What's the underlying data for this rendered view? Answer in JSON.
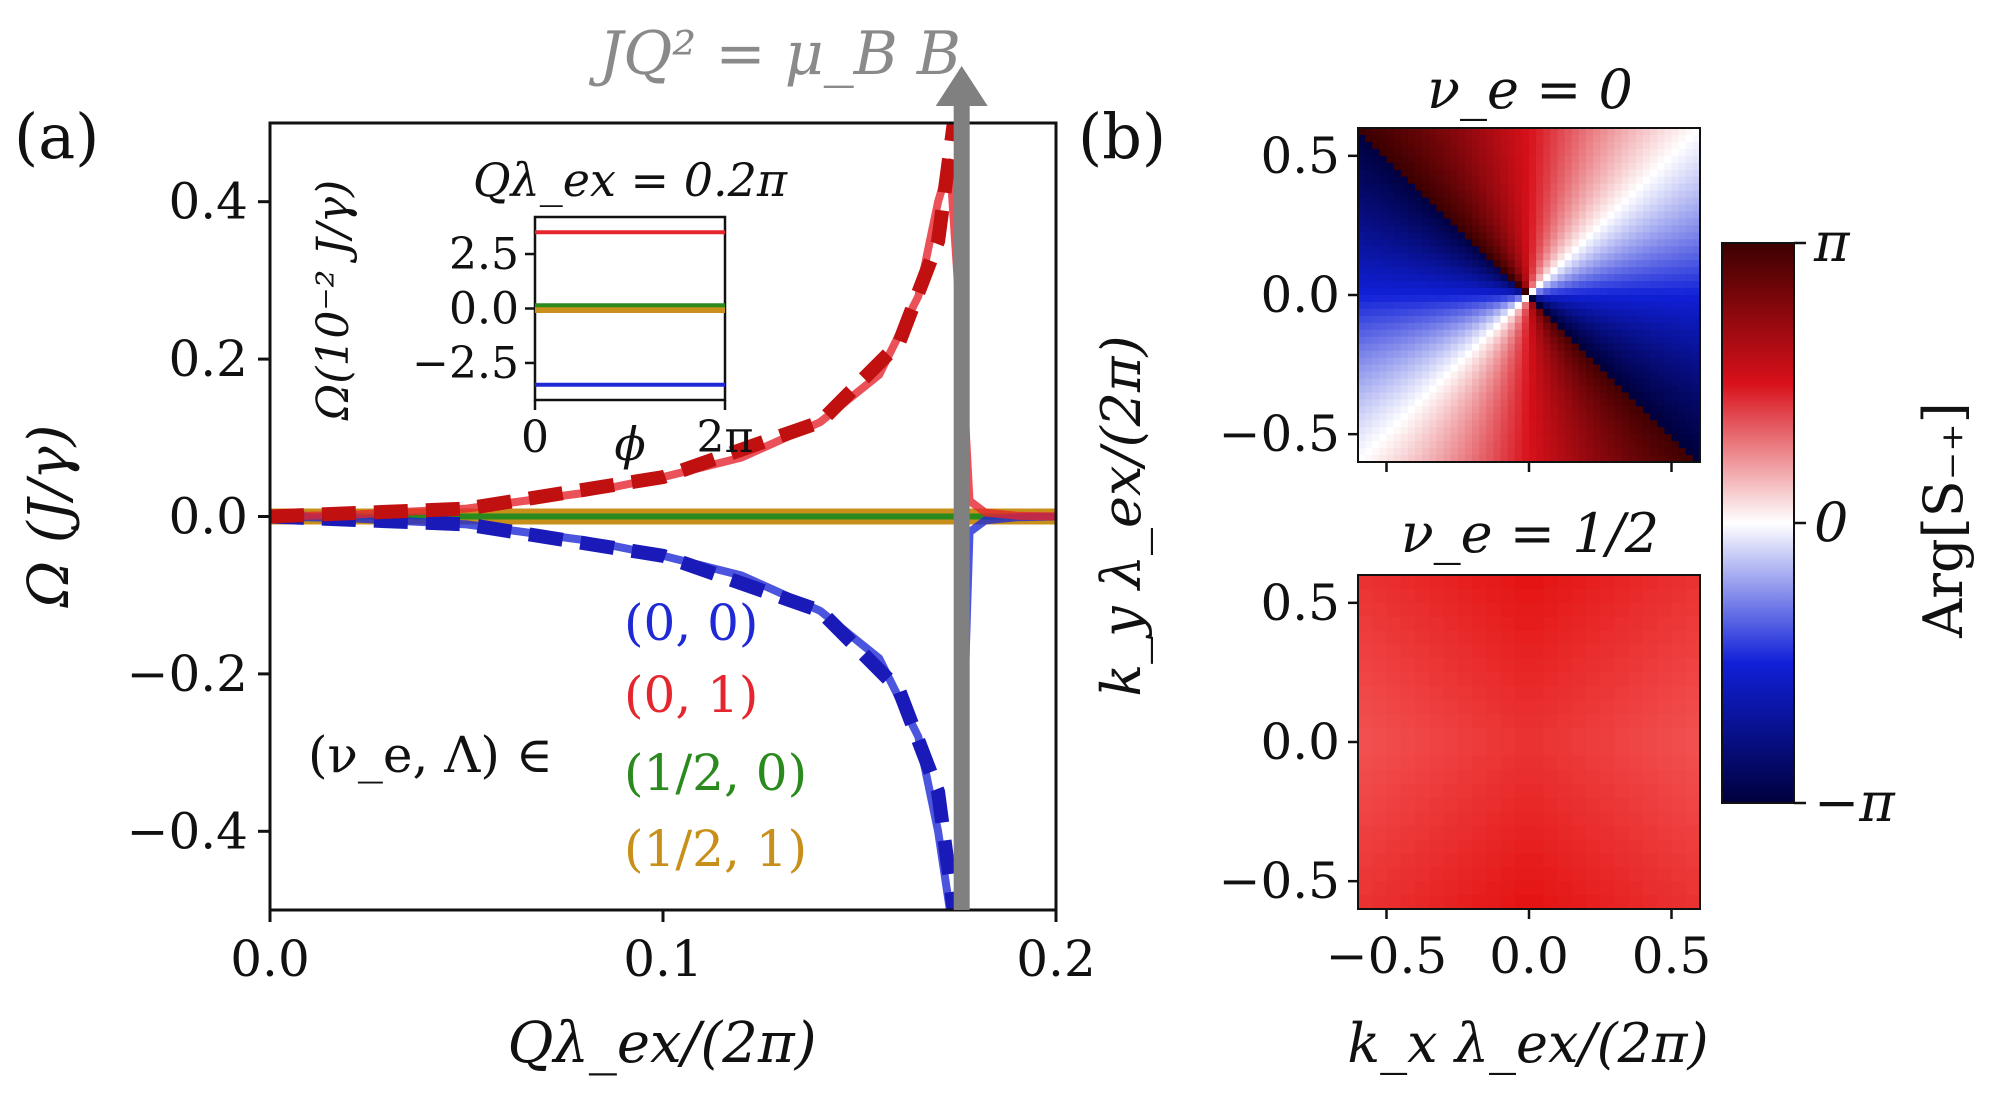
{
  "panel_a": {
    "label": "(a)",
    "annotation": "JQ² = μ_B B",
    "inset_title": "Qλ_ex = 0.2π",
    "legend_prefix": "(ν_e, Λ) ∈"
  },
  "panel_b": {
    "label": "(b)"
  },
  "colors": {
    "blue": "#1f2ad6",
    "red": "#e6262e",
    "green": "#2a8a1e",
    "gold": "#c8901a",
    "gray": "#808080"
  },
  "chart_data": [
    {
      "type": "line",
      "title": "",
      "xlabel": "Qλ_ex/(2π)",
      "ylabel": "Ω (J/γ)",
      "xlim": [
        0.0,
        0.2
      ],
      "ylim": [
        -0.5,
        0.5
      ],
      "xticks": [
        0.0,
        0.1,
        0.2
      ],
      "xtick_labels": [
        "0.0",
        "0.1",
        "0.2"
      ],
      "yticks": [
        -0.4,
        -0.2,
        0.0,
        0.2,
        0.4
      ],
      "ytick_labels": [
        "−0.4",
        "−0.2",
        "0.0",
        "0.2",
        "0.4"
      ],
      "resonance_x": 0.176,
      "series": [
        {
          "name": "(0, 0)",
          "color": "blue",
          "x": [
            0.0,
            0.02,
            0.05,
            0.08,
            0.1,
            0.12,
            0.14,
            0.155,
            0.165,
            0.17,
            0.173,
            0.175,
            0.178,
            0.182,
            0.19,
            0.2
          ],
          "y": [
            0.0,
            -0.002,
            -0.01,
            -0.03,
            -0.05,
            -0.075,
            -0.12,
            -0.18,
            -0.28,
            -0.4,
            -0.5,
            -0.5,
            -0.02,
            -0.005,
            -0.001,
            0.0
          ]
        },
        {
          "name": "(0, 1)",
          "color": "red",
          "x": [
            0.0,
            0.02,
            0.05,
            0.08,
            0.1,
            0.12,
            0.14,
            0.155,
            0.165,
            0.17,
            0.173,
            0.175,
            0.178,
            0.182,
            0.19,
            0.2
          ],
          "y": [
            0.0,
            0.002,
            0.01,
            0.03,
            0.05,
            0.075,
            0.12,
            0.18,
            0.28,
            0.4,
            0.45,
            0.3,
            0.02,
            0.005,
            0.001,
            0.0
          ]
        },
        {
          "name": "(1/2, 0)",
          "color": "green",
          "x": [
            0.0,
            0.2
          ],
          "y": [
            0.0,
            0.0
          ]
        },
        {
          "name": "(1/2, 1)",
          "color": "gold",
          "x": [
            0.0,
            0.2
          ],
          "y": [
            0.0,
            0.0
          ]
        }
      ],
      "dashed_series": [
        {
          "name": "(0, 0) dashed",
          "color": "blue",
          "x": [
            0.0,
            0.05,
            0.1,
            0.14,
            0.16,
            0.17,
            0.174
          ],
          "y": [
            0.0,
            -0.01,
            -0.05,
            -0.12,
            -0.22,
            -0.35,
            -0.5
          ]
        },
        {
          "name": "(0, 1) dashed",
          "color": "red",
          "x": [
            0.0,
            0.05,
            0.1,
            0.14,
            0.16,
            0.17,
            0.174
          ],
          "y": [
            0.0,
            0.01,
            0.05,
            0.12,
            0.22,
            0.35,
            0.5
          ]
        }
      ]
    },
    {
      "type": "line",
      "title": "Qλ_ex = 0.2π",
      "xlabel": "ϕ",
      "ylabel": "Ω(10⁻² J/γ)",
      "xticks": [
        "0",
        "2π"
      ],
      "ylim": [
        -4.2,
        4.2
      ],
      "yticks": [
        -2.5,
        0.0,
        2.5
      ],
      "ytick_labels": [
        "−2.5",
        "0.0",
        "2.5"
      ],
      "series": [
        {
          "name": "(0, 1)",
          "color": "red",
          "y": 3.5
        },
        {
          "name": "(1/2, 1)",
          "color": "gold",
          "y": 0.0
        },
        {
          "name": "(1/2, 0)",
          "color": "green",
          "y": 0.15
        },
        {
          "name": "(0, 0)",
          "color": "blue",
          "y": -3.5
        }
      ]
    },
    {
      "type": "heatmap",
      "title": "ν_e = 0",
      "ylabel": "k_y λ_ex/(2π)",
      "xlim": [
        -0.6,
        0.6
      ],
      "ylim": [
        -0.6,
        0.6
      ],
      "yticks": [
        "−0.5",
        "0.0",
        "0.5"
      ],
      "description_values": "Arg of S₋₊ winding around origin"
    },
    {
      "type": "heatmap",
      "title": "ν_e = 1/2",
      "xlabel": "k_x λ_ex/(2π)",
      "ylabel": "k_y λ_ex/(2π)",
      "xlim": [
        -0.6,
        0.6
      ],
      "ylim": [
        -0.6,
        0.6
      ],
      "xticks": [
        "−0.5",
        "0.0",
        "0.5"
      ],
      "yticks": [
        "−0.5",
        "0.0",
        "0.5"
      ]
    },
    {
      "type": "colorbar",
      "label": "Arg[S₋₊]",
      "range": [
        -3.14159,
        3.14159
      ],
      "tick_labels": [
        "π",
        "0",
        "−π"
      ]
    }
  ]
}
